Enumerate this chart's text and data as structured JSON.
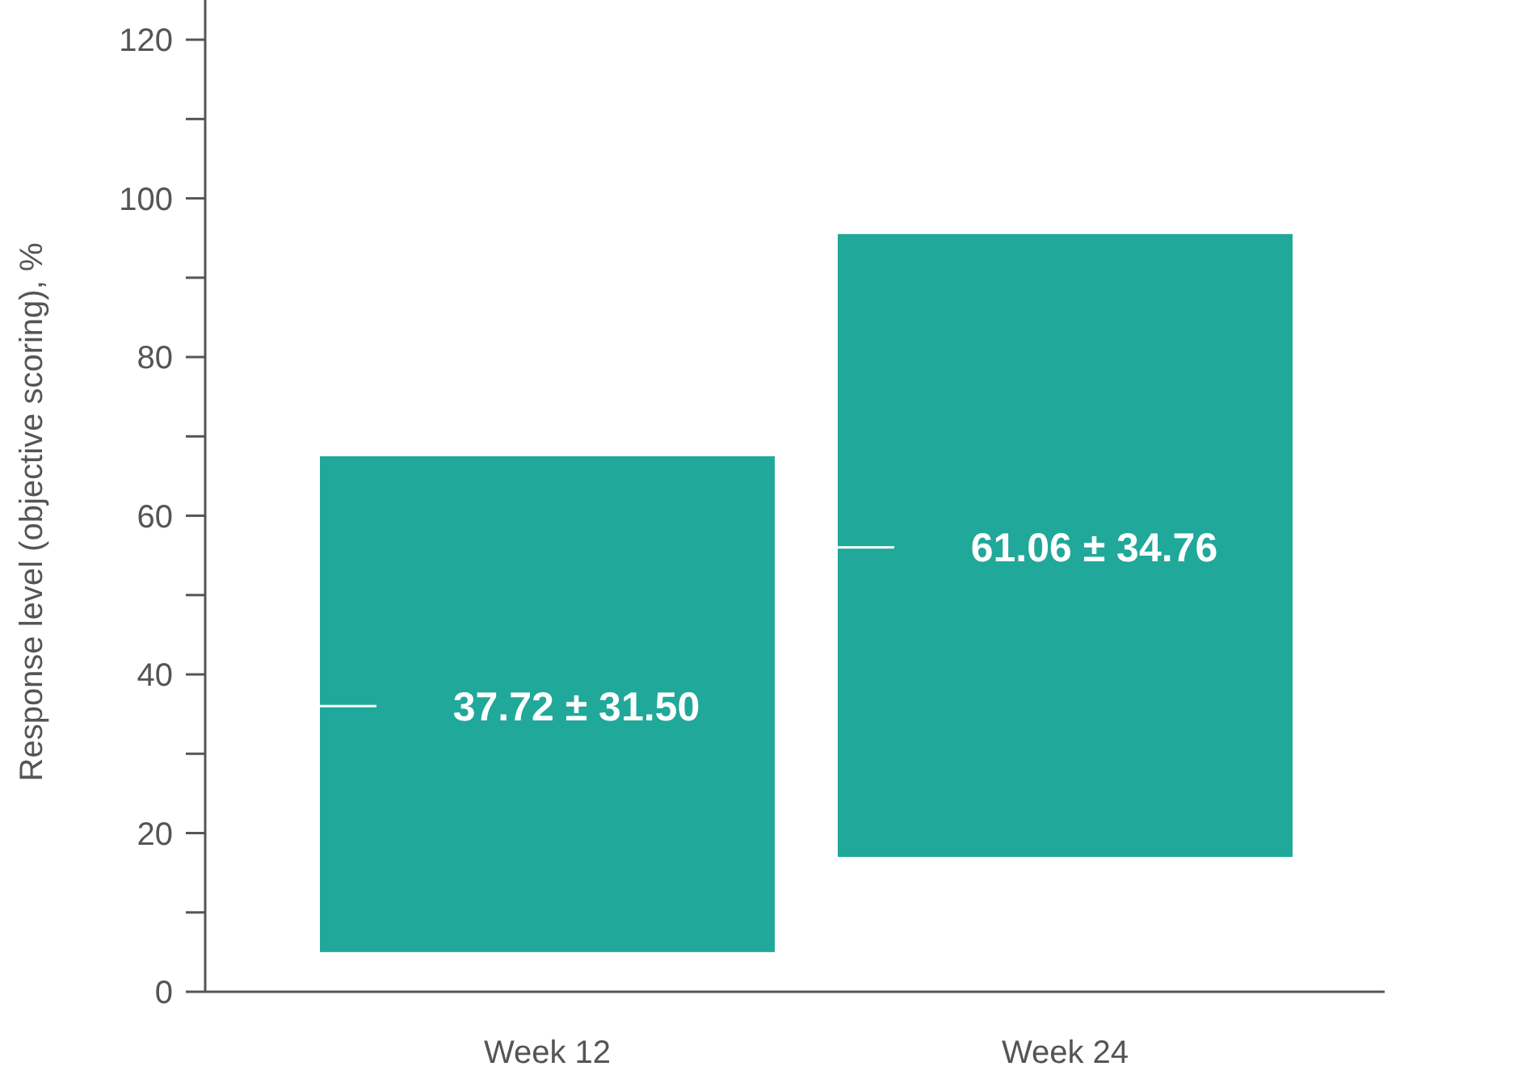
{
  "chart_data": {
    "type": "bar",
    "ylabel": "Response level (objective scoring), %",
    "categories": [
      "Week 12",
      "Week 24"
    ],
    "series": [
      {
        "color": "#20a89a",
        "values": [
          62.5,
          78.5
        ],
        "base": [
          5,
          17
        ]
      }
    ],
    "ylim": [
      0,
      125
    ],
    "yticks": [
      0,
      {
        "value": 10,
        "label": null
      },
      20,
      {
        "value": 30,
        "label": null
      },
      40,
      {
        "value": 50,
        "label": null
      },
      60,
      {
        "value": 70,
        "label": null
      },
      80,
      {
        "value": 90,
        "label": null
      },
      100,
      {
        "value": 110,
        "label": null
      },
      120
    ],
    "annotations": [
      "37.72 ± 31.50",
      "61.06 ± 34.76"
    ]
  }
}
